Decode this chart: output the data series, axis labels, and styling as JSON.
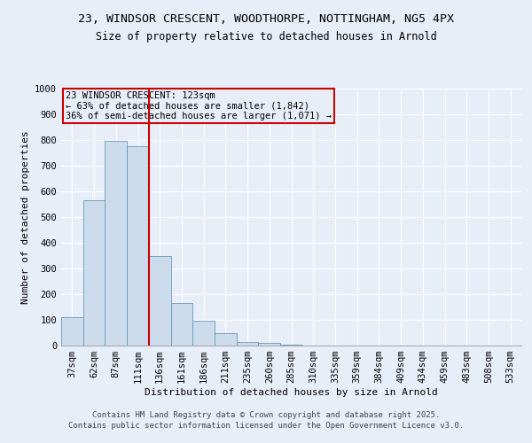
{
  "title_line1": "23, WINDSOR CRESCENT, WOODTHORPE, NOTTINGHAM, NG5 4PX",
  "title_line2": "Size of property relative to detached houses in Arnold",
  "xlabel": "Distribution of detached houses by size in Arnold",
  "ylabel": "Number of detached properties",
  "categories": [
    "37sqm",
    "62sqm",
    "87sqm",
    "111sqm",
    "136sqm",
    "161sqm",
    "186sqm",
    "211sqm",
    "235sqm",
    "260sqm",
    "285sqm",
    "310sqm",
    "335sqm",
    "359sqm",
    "384sqm",
    "409sqm",
    "434sqm",
    "459sqm",
    "483sqm",
    "508sqm",
    "533sqm"
  ],
  "values": [
    112,
    565,
    795,
    775,
    350,
    165,
    98,
    50,
    15,
    12,
    5,
    0,
    0,
    0,
    0,
    0,
    0,
    0,
    0,
    0,
    0
  ],
  "bar_color": "#ccdcec",
  "bar_edge_color": "#6699bb",
  "property_line_x": 3.5,
  "annotation_title": "23 WINDSOR CRESCENT: 123sqm",
  "annotation_line1": "← 63% of detached houses are smaller (1,842)",
  "annotation_line2": "36% of semi-detached houses are larger (1,071) →",
  "annotation_box_color": "#cc0000",
  "ylim": [
    0,
    1000
  ],
  "yticks": [
    0,
    100,
    200,
    300,
    400,
    500,
    600,
    700,
    800,
    900,
    1000
  ],
  "background_color": "#e8eef8",
  "grid_color": "#ffffff",
  "footer_line1": "Contains HM Land Registry data © Crown copyright and database right 2025.",
  "footer_line2": "Contains public sector information licensed under the Open Government Licence v3.0.",
  "title_fontsize": 9.5,
  "subtitle_fontsize": 8.5,
  "axis_label_fontsize": 8,
  "tick_fontsize": 7.5,
  "annotation_fontsize": 7.5,
  "footer_fontsize": 6.5
}
